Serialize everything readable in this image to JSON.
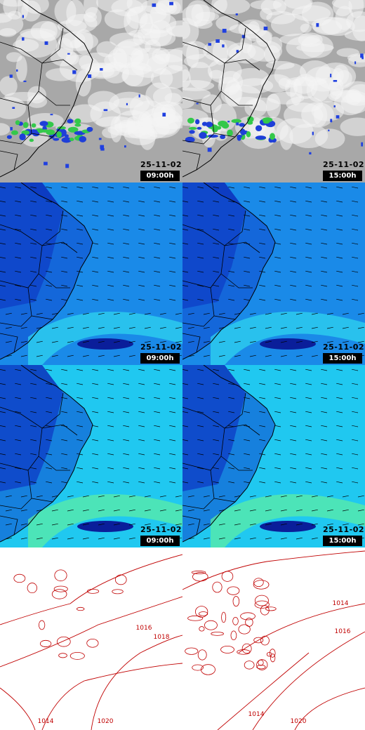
{
  "panels": [
    {
      "date": "25-11-02",
      "time": "09:00h"
    },
    {
      "date": "25-11-02",
      "time": "15:00h"
    },
    {
      "date": "25-11-02",
      "time": "09:00h"
    },
    {
      "date": "25-11-02",
      "time": "15:00h"
    },
    {
      "date": "25-11-02",
      "time": "09:00h"
    },
    {
      "date": "25-11-02",
      "time": "15:00h"
    }
  ],
  "isobar_panels": [
    {
      "labels": [
        "1016",
        "1018",
        "1020",
        "1014"
      ]
    },
    {
      "labels": [
        "1014",
        "1016",
        "1020",
        "1014"
      ]
    }
  ]
}
